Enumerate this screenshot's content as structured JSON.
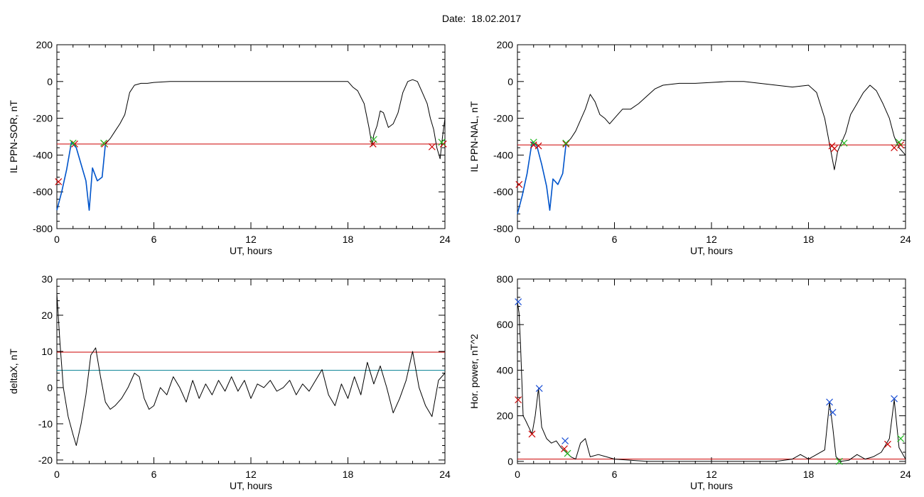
{
  "page_title": "Date:  18.02.2017",
  "chart_data": [
    {
      "type": "line",
      "panel": "top-left",
      "xlabel": "UT, hours",
      "ylabel": "IL PPN-SOR, nT",
      "xlim": [
        0,
        24
      ],
      "ylim": [
        -800,
        200
      ],
      "xticks": [
        0,
        6,
        12,
        18,
        24
      ],
      "yticks": [
        -800,
        -600,
        -400,
        -200,
        0,
        200
      ],
      "series": [
        {
          "color": "#000000",
          "x": [
            0,
            0.3,
            0.6,
            0.9,
            1.2,
            1.5,
            1.8,
            2.0,
            2.2,
            2.5,
            2.8,
            3.0,
            3.3,
            3.6,
            3.9,
            4.2,
            4.5,
            4.8,
            5.2,
            5.6,
            6.0,
            7,
            8,
            9,
            10,
            11,
            12,
            13,
            14,
            15,
            16,
            17,
            18.0,
            18.3,
            18.6,
            19.0,
            19.3,
            19.5,
            19.6,
            19.8,
            20.0,
            20.2,
            20.5,
            20.8,
            21.1,
            21.4,
            21.7,
            22.0,
            22.3,
            22.6,
            22.9,
            23.1,
            23.3,
            23.5,
            23.7,
            23.85,
            24
          ],
          "y": [
            -700,
            -600,
            -480,
            -330,
            -360,
            -450,
            -540,
            -700,
            -470,
            -540,
            -520,
            -340,
            -310,
            -270,
            -230,
            -180,
            -60,
            -20,
            -10,
            -10,
            -5,
            0,
            0,
            0,
            0,
            0,
            0,
            0,
            0,
            0,
            0,
            0,
            0,
            -30,
            -50,
            -120,
            -250,
            -350,
            -290,
            -240,
            -160,
            -170,
            -250,
            -230,
            -170,
            -60,
            0,
            10,
            0,
            -60,
            -120,
            -200,
            -260,
            -360,
            -420,
            -300,
            -200
          ]
        },
        {
          "color": "#0055cc",
          "x": [
            0,
            0.3,
            0.6,
            0.9,
            1.2,
            1.5,
            1.8,
            2.0,
            2.2,
            2.5,
            2.8,
            3.0
          ],
          "y": [
            -700,
            -600,
            -480,
            -330,
            -360,
            -450,
            -540,
            -700,
            -470,
            -540,
            -520,
            -340
          ]
        }
      ],
      "hlines": [
        {
          "y": -340,
          "color": "#cc0000"
        }
      ],
      "markers_red": [
        [
          0.1,
          -545
        ],
        [
          1.1,
          -340
        ],
        [
          2.95,
          -340
        ],
        [
          19.55,
          -340
        ],
        [
          23.2,
          -355
        ],
        [
          23.9,
          -340
        ]
      ],
      "markers_green": [
        [
          1.0,
          -335
        ],
        [
          2.9,
          -335
        ],
        [
          19.6,
          -315
        ],
        [
          23.8,
          -330
        ]
      ]
    },
    {
      "type": "line",
      "panel": "top-right",
      "xlabel": "UT, hours",
      "ylabel": "IL PPN-NAL, nT",
      "xlim": [
        0,
        24
      ],
      "ylim": [
        -800,
        200
      ],
      "xticks": [
        0,
        6,
        12,
        18,
        24
      ],
      "yticks": [
        -800,
        -600,
        -400,
        -200,
        0,
        200
      ],
      "series": [
        {
          "color": "#000000",
          "x": [
            0,
            0.3,
            0.6,
            0.9,
            1.2,
            1.5,
            1.8,
            2.0,
            2.2,
            2.5,
            2.8,
            3.0,
            3.3,
            3.6,
            3.9,
            4.2,
            4.5,
            4.8,
            5.1,
            5.4,
            5.7,
            6.0,
            6.5,
            7.0,
            7.5,
            8.0,
            8.5,
            9.0,
            10,
            11,
            12,
            13,
            14,
            15,
            16,
            17,
            18.0,
            18.5,
            19.0,
            19.3,
            19.6,
            19.8,
            20.0,
            20.3,
            20.6,
            21.0,
            21.4,
            21.8,
            22.2,
            22.6,
            23.0,
            23.3,
            23.6,
            24
          ],
          "y": [
            -720,
            -620,
            -500,
            -330,
            -350,
            -450,
            -570,
            -700,
            -530,
            -560,
            -500,
            -340,
            -310,
            -270,
            -210,
            -150,
            -70,
            -110,
            -180,
            -200,
            -230,
            -200,
            -150,
            -150,
            -120,
            -80,
            -40,
            -20,
            -10,
            -10,
            -5,
            0,
            0,
            -10,
            -20,
            -30,
            -20,
            -60,
            -200,
            -340,
            -480,
            -380,
            -340,
            -280,
            -180,
            -120,
            -60,
            -20,
            -50,
            -120,
            -200,
            -300,
            -360,
            -400
          ]
        },
        {
          "color": "#0055cc",
          "x": [
            0,
            0.3,
            0.6,
            0.9,
            1.2,
            1.5,
            1.8,
            2.0,
            2.2,
            2.5,
            2.8,
            3.0
          ],
          "y": [
            -720,
            -620,
            -500,
            -330,
            -350,
            -450,
            -570,
            -700,
            -530,
            -560,
            -500,
            -340
          ]
        }
      ],
      "hlines": [
        {
          "y": -345,
          "color": "#cc0000"
        }
      ],
      "markers_red": [
        [
          0.1,
          -560
        ],
        [
          1.0,
          -345
        ],
        [
          1.3,
          -350
        ],
        [
          3.0,
          -340
        ],
        [
          19.45,
          -350
        ],
        [
          19.6,
          -365
        ],
        [
          23.3,
          -360
        ],
        [
          23.7,
          -345
        ]
      ],
      "markers_green": [
        [
          1.0,
          -330
        ],
        [
          3.0,
          -335
        ],
        [
          20.2,
          -335
        ],
        [
          23.6,
          -330
        ]
      ]
    },
    {
      "type": "line",
      "panel": "bottom-left",
      "xlabel": "UT, hours",
      "ylabel": "deltaX, nT",
      "xlim": [
        0,
        24
      ],
      "ylim": [
        -21,
        30
      ],
      "xticks": [
        0,
        6,
        12,
        18,
        24
      ],
      "yticks": [
        -20,
        -10,
        0,
        10,
        20,
        30
      ],
      "series": [
        {
          "color": "#000000",
          "x": [
            0,
            0.2,
            0.4,
            0.7,
            1.0,
            1.2,
            1.5,
            1.8,
            2.1,
            2.4,
            2.7,
            3.0,
            3.3,
            3.6,
            4.0,
            4.4,
            4.8,
            5.1,
            5.4,
            5.7,
            6.0,
            6.4,
            6.8,
            7.2,
            7.6,
            8.0,
            8.4,
            8.8,
            9.2,
            9.6,
            10.0,
            10.4,
            10.8,
            11.2,
            11.6,
            12.0,
            12.4,
            12.8,
            13.2,
            13.6,
            14.0,
            14.4,
            14.8,
            15.2,
            15.6,
            16.0,
            16.4,
            16.8,
            17.2,
            17.6,
            18.0,
            18.4,
            18.8,
            19.2,
            19.6,
            20.0,
            20.4,
            20.8,
            21.2,
            21.6,
            22.0,
            22.4,
            22.8,
            23.2,
            23.6,
            24
          ],
          "y": [
            26,
            12,
            0,
            -8,
            -13,
            -16,
            -10,
            -2,
            9,
            11,
            3,
            -4,
            -6,
            -5,
            -3,
            0,
            4,
            3,
            -3,
            -6,
            -5,
            0,
            -2,
            3,
            0,
            -4,
            2,
            -3,
            1,
            -2,
            2,
            -1,
            3,
            -1,
            2,
            -3,
            1,
            0,
            2,
            -1,
            0,
            2,
            -2,
            1,
            -1,
            2,
            5,
            -2,
            -5,
            1,
            -3,
            3,
            -2,
            7,
            1,
            6,
            0,
            -7,
            -3,
            2,
            10,
            0,
            -5,
            -8,
            2,
            4
          ]
        }
      ],
      "hlines": [
        {
          "y": 9.8,
          "color": "#cc0000"
        },
        {
          "y": 4.8,
          "color": "#118899"
        }
      ]
    },
    {
      "type": "line",
      "panel": "bottom-right",
      "xlabel": "UT, hours",
      "ylabel": "Hor. power, nT^2",
      "xlim": [
        0,
        24
      ],
      "ylim": [
        -10,
        800
      ],
      "xticks": [
        0,
        6,
        12,
        18,
        24
      ],
      "yticks": [
        0,
        200,
        400,
        600,
        800
      ],
      "series": [
        {
          "color": "#000000",
          "x": [
            0,
            0.1,
            0.2,
            0.35,
            0.5,
            0.7,
            0.9,
            1.1,
            1.3,
            1.5,
            1.8,
            2.1,
            2.4,
            2.7,
            3.0,
            3.3,
            3.6,
            3.9,
            4.2,
            4.5,
            5.0,
            5.5,
            6.0,
            7,
            8,
            9,
            10,
            11,
            12,
            13,
            14,
            15,
            16,
            17,
            17.5,
            18.0,
            18.5,
            19.0,
            19.3,
            19.5,
            19.7,
            20.0,
            20.5,
            21.0,
            21.5,
            22.0,
            22.5,
            23.0,
            23.3,
            23.6,
            24
          ],
          "y": [
            700,
            650,
            500,
            200,
            180,
            150,
            120,
            200,
            320,
            150,
            100,
            80,
            90,
            60,
            40,
            20,
            10,
            80,
            100,
            20,
            30,
            20,
            10,
            5,
            0,
            0,
            0,
            0,
            0,
            0,
            0,
            0,
            0,
            10,
            30,
            10,
            30,
            50,
            260,
            150,
            20,
            0,
            5,
            30,
            10,
            20,
            40,
            100,
            270,
            60,
            10
          ]
        }
      ],
      "hlines": [
        {
          "y": 10,
          "color": "#cc0000"
        }
      ],
      "markers_blue": [
        [
          0.05,
          700
        ],
        [
          1.35,
          320
        ],
        [
          2.95,
          90
        ],
        [
          19.3,
          260
        ],
        [
          19.5,
          215
        ],
        [
          23.3,
          275
        ]
      ],
      "markers_red": [
        [
          0.05,
          270
        ],
        [
          0.9,
          120
        ],
        [
          2.9,
          55
        ],
        [
          22.9,
          75
        ]
      ],
      "markers_green": [
        [
          3.1,
          35
        ],
        [
          19.9,
          0
        ],
        [
          23.7,
          100
        ]
      ]
    }
  ]
}
